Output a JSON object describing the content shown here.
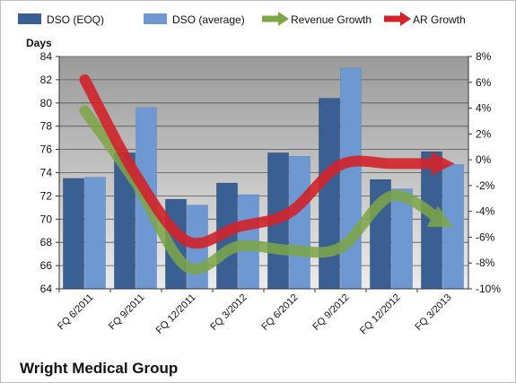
{
  "chart_data": {
    "type": "bar",
    "title": "",
    "company_label": "Wright Medical Group",
    "ylabel_left": "Days",
    "ylim_left": [
      64,
      84
    ],
    "yticks_left": [
      "64",
      "66",
      "68",
      "70",
      "72",
      "74",
      "76",
      "78",
      "80",
      "82",
      "84"
    ],
    "ylim_right": [
      -10,
      8
    ],
    "yticks_right": [
      "-10%",
      "-8%",
      "-6%",
      "-4%",
      "-2%",
      "0%",
      "2%",
      "4%",
      "6%",
      "8%"
    ],
    "categories": [
      "FQ 6/2011",
      "FQ 9/2011",
      "FQ 12/2011",
      "FQ 3/2012",
      "FQ 6/2012",
      "FQ 9/2012",
      "FQ 12/2012",
      "FQ 3/2013"
    ],
    "series": [
      {
        "name": "DSO (EOQ)",
        "type": "bar",
        "axis": "left",
        "color": "#3a5f93",
        "values": [
          73.5,
          75.7,
          71.7,
          73.1,
          75.7,
          80.4,
          73.4,
          75.8
        ]
      },
      {
        "name": "DSO (average)",
        "type": "bar",
        "axis": "left",
        "color": "#6d98d2",
        "values": [
          73.6,
          79.6,
          71.2,
          72.1,
          75.4,
          83.0,
          72.6,
          74.7
        ]
      },
      {
        "name": "Revenue Growth",
        "type": "line",
        "axis": "right",
        "color": "#7ea646",
        "values": [
          3.8,
          -1.8,
          -8.3,
          -6.7,
          -7.0,
          -6.8,
          -2.8,
          -4.8
        ]
      },
      {
        "name": "AR Growth",
        "type": "line",
        "axis": "right",
        "color": "#d2232a",
        "values": [
          6.2,
          -1.2,
          -6.3,
          -5.2,
          -4.1,
          -0.4,
          -0.3,
          -0.3
        ]
      }
    ],
    "grid": true,
    "legend_position": "top"
  }
}
